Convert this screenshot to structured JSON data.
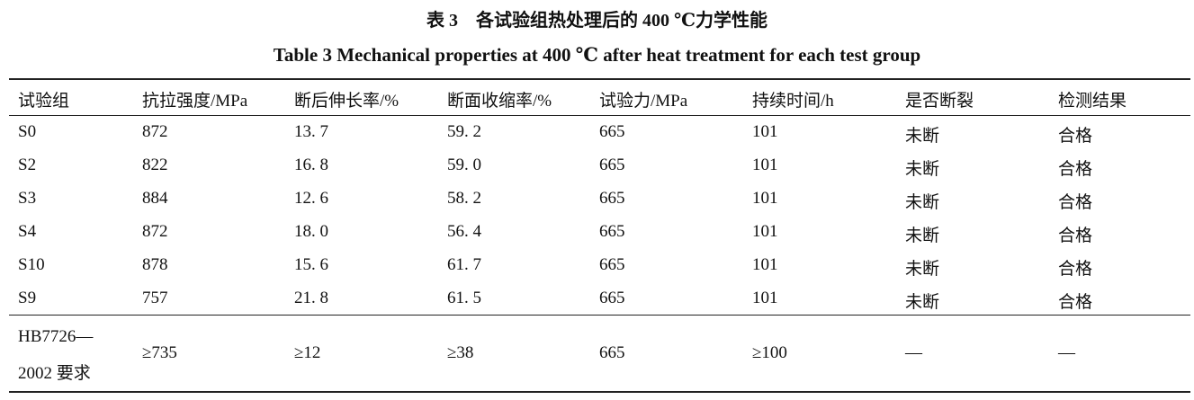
{
  "caption_cn": "表 3　各试验组热处理后的 400 ℃力学性能",
  "caption_en": "Table 3   Mechanical properties at 400 ℃ after heat treatment for each test group",
  "columns": [
    "试验组",
    "抗拉强度/MPa",
    "断后伸长率/%",
    "断面收缩率/%",
    "试验力/MPa",
    "持续时间/h",
    "是否断裂",
    "检测结果"
  ],
  "rows": [
    [
      "S0",
      "872",
      "13. 7",
      "59. 2",
      "665",
      "101",
      "未断",
      "合格"
    ],
    [
      "S2",
      "822",
      "16. 8",
      "59. 0",
      "665",
      "101",
      "未断",
      "合格"
    ],
    [
      "S3",
      "884",
      "12. 6",
      "58. 2",
      "665",
      "101",
      "未断",
      "合格"
    ],
    [
      "S4",
      "872",
      "18. 0",
      "56. 4",
      "665",
      "101",
      "未断",
      "合格"
    ],
    [
      "S10",
      "878",
      "15. 6",
      "61. 7",
      "665",
      "101",
      "未断",
      "合格"
    ],
    [
      "S9",
      "757",
      "21. 8",
      "61. 5",
      "665",
      "101",
      "未断",
      "合格"
    ]
  ],
  "standard": {
    "label_line1": "HB7726—",
    "label_line2": "2002 要求",
    "values": [
      "≥735",
      "≥12",
      "≥38",
      "665",
      "≥100",
      "—",
      "—"
    ]
  }
}
